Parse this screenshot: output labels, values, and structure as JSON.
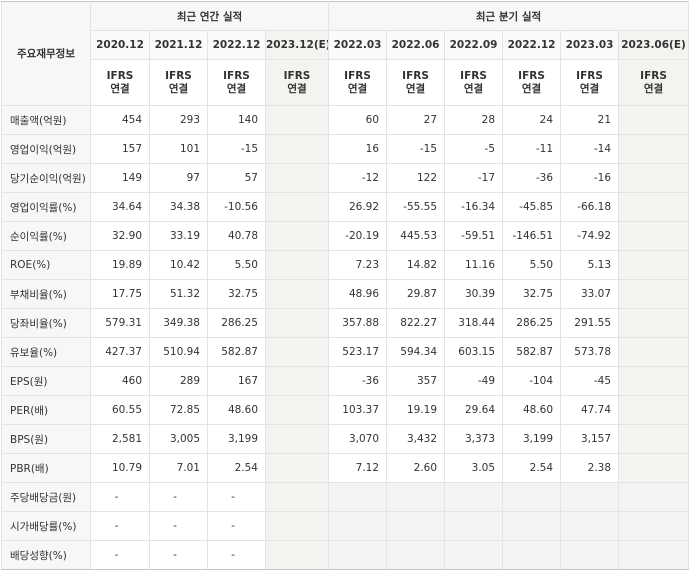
{
  "header": {
    "row_label": "주요재무정보",
    "annual_group": "최근 연간 실적",
    "quarter_group": "최근 분기 실적",
    "annual_periods": [
      "2020.12",
      "2021.12",
      "2022.12",
      "2023.12(E)"
    ],
    "quarter_periods": [
      "2022.03",
      "2022.06",
      "2022.09",
      "2022.12",
      "2023.03",
      "2023.06(E)"
    ],
    "ifrs_line1": "IFRS",
    "ifrs_line2": "연결"
  },
  "rows": [
    {
      "label": "매출액(억원)",
      "annual": [
        "454",
        "293",
        "140",
        ""
      ],
      "quarter": [
        "60",
        "27",
        "28",
        "24",
        "21",
        ""
      ]
    },
    {
      "label": "영업이익(억원)",
      "annual": [
        "157",
        "101",
        "-15",
        ""
      ],
      "quarter": [
        "16",
        "-15",
        "-5",
        "-11",
        "-14",
        ""
      ]
    },
    {
      "label": "당기순이익(억원)",
      "annual": [
        "149",
        "97",
        "57",
        ""
      ],
      "quarter": [
        "-12",
        "122",
        "-17",
        "-36",
        "-16",
        ""
      ]
    },
    {
      "label": "영업이익률(%)",
      "annual": [
        "34.64",
        "34.38",
        "-10.56",
        ""
      ],
      "quarter": [
        "26.92",
        "-55.55",
        "-16.34",
        "-45.85",
        "-66.18",
        ""
      ]
    },
    {
      "label": "순이익률(%)",
      "annual": [
        "32.90",
        "33.19",
        "40.78",
        ""
      ],
      "quarter": [
        "-20.19",
        "445.53",
        "-59.51",
        "-146.51",
        "-74.92",
        ""
      ]
    },
    {
      "label": "ROE(%)",
      "annual": [
        "19.89",
        "10.42",
        "5.50",
        ""
      ],
      "quarter": [
        "7.23",
        "14.82",
        "11.16",
        "5.50",
        "5.13",
        ""
      ]
    },
    {
      "label": "부채비율(%)",
      "annual": [
        "17.75",
        "51.32",
        "32.75",
        ""
      ],
      "quarter": [
        "48.96",
        "29.87",
        "30.39",
        "32.75",
        "33.07",
        ""
      ]
    },
    {
      "label": "당좌비율(%)",
      "annual": [
        "579.31",
        "349.38",
        "286.25",
        ""
      ],
      "quarter": [
        "357.88",
        "822.27",
        "318.44",
        "286.25",
        "291.55",
        ""
      ]
    },
    {
      "label": "유보율(%)",
      "annual": [
        "427.37",
        "510.94",
        "582.87",
        ""
      ],
      "quarter": [
        "523.17",
        "594.34",
        "603.15",
        "582.87",
        "573.78",
        ""
      ]
    },
    {
      "label": "EPS(원)",
      "annual": [
        "460",
        "289",
        "167",
        ""
      ],
      "quarter": [
        "-36",
        "357",
        "-49",
        "-104",
        "-45",
        ""
      ]
    },
    {
      "label": "PER(배)",
      "annual": [
        "60.55",
        "72.85",
        "48.60",
        ""
      ],
      "quarter": [
        "103.37",
        "19.19",
        "29.64",
        "48.60",
        "47.74",
        ""
      ]
    },
    {
      "label": "BPS(원)",
      "annual": [
        "2,581",
        "3,005",
        "3,199",
        ""
      ],
      "quarter": [
        "3,070",
        "3,432",
        "3,373",
        "3,199",
        "3,157",
        ""
      ]
    },
    {
      "label": "PBR(배)",
      "annual": [
        "10.79",
        "7.01",
        "2.54",
        ""
      ],
      "quarter": [
        "7.12",
        "2.60",
        "3.05",
        "2.54",
        "2.38",
        ""
      ]
    },
    {
      "label": "주당배당금(원)",
      "annual": [
        "-",
        "-",
        "-",
        ""
      ],
      "quarter": null
    },
    {
      "label": "시가배당률(%)",
      "annual": [
        "-",
        "-",
        "-",
        ""
      ],
      "quarter": null
    },
    {
      "label": "배당성향(%)",
      "annual": [
        "-",
        "-",
        "-",
        ""
      ],
      "quarter": null
    }
  ],
  "colors": {
    "negative": "#e03b3b",
    "ifrs": "#ee6a1b",
    "estimate_header": "#4a8f55",
    "estimate_bg": "#f1f4ef"
  }
}
